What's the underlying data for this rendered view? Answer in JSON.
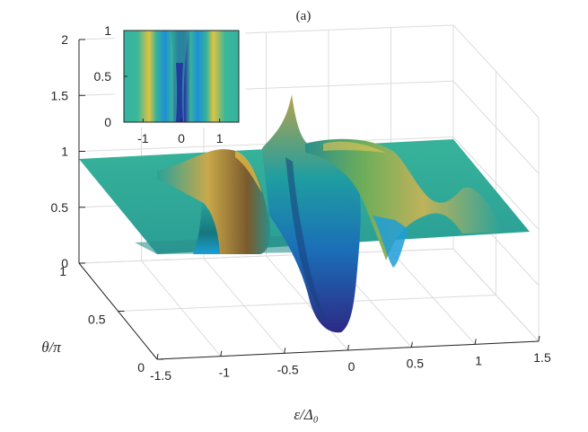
{
  "chart_data": [
    {
      "type": "surface",
      "title": "(a)",
      "xlabel": "ε/Δ₀",
      "ylabel": "θ/π",
      "zlabel": "",
      "xlim": [
        -1.5,
        1.5
      ],
      "ylim": [
        0,
        1
      ],
      "zlim": [
        0,
        2
      ],
      "x_ticks": [
        "-1.5",
        "-1",
        "-0.5",
        "0",
        "0.5",
        "1",
        "1.5"
      ],
      "y_ticks": [
        "0",
        "0.5",
        "1"
      ],
      "z_ticks": [
        "0",
        "0.5",
        "1",
        "1.5",
        "2"
      ],
      "grid": true,
      "colormap": "parula",
      "baseline_value": 1.0,
      "features": [
        {
          "feature": "ridge",
          "x": -0.85,
          "theta_range": [
            0.35,
            1.0
          ],
          "peak_z": 1.25
        },
        {
          "feature": "dip",
          "x": -0.85,
          "theta_range": [
            0.0,
            0.35
          ],
          "min_z": 0.05
        },
        {
          "feature": "ridge",
          "x": 0.85,
          "theta_range": [
            0.35,
            1.0
          ],
          "peak_z": 1.25
        },
        {
          "feature": "dip",
          "x": 0.85,
          "theta_range": [
            0.0,
            0.35
          ],
          "min_z": 0.05
        },
        {
          "feature": "peak",
          "x": -0.05,
          "theta": 0.7,
          "z": 1.75
        },
        {
          "feature": "minimum",
          "x": 0.0,
          "theta": 0.0,
          "z": -0.55
        }
      ]
    },
    {
      "type": "heatmap",
      "title": "",
      "xlim": [
        -1.5,
        1.5
      ],
      "ylim": [
        0,
        1
      ],
      "x_ticks": [
        "-1",
        "0",
        "1"
      ],
      "y_ticks": [
        "0",
        "0.5",
        "1"
      ],
      "colormap": "parula"
    }
  ],
  "colors": {
    "dark_blue": "#2c2a86",
    "blue": "#1f7fd6",
    "teal": "#2ab3a6",
    "green": "#6fbd6a",
    "olive": "#a8b04c",
    "yellow": "#e4c243"
  }
}
